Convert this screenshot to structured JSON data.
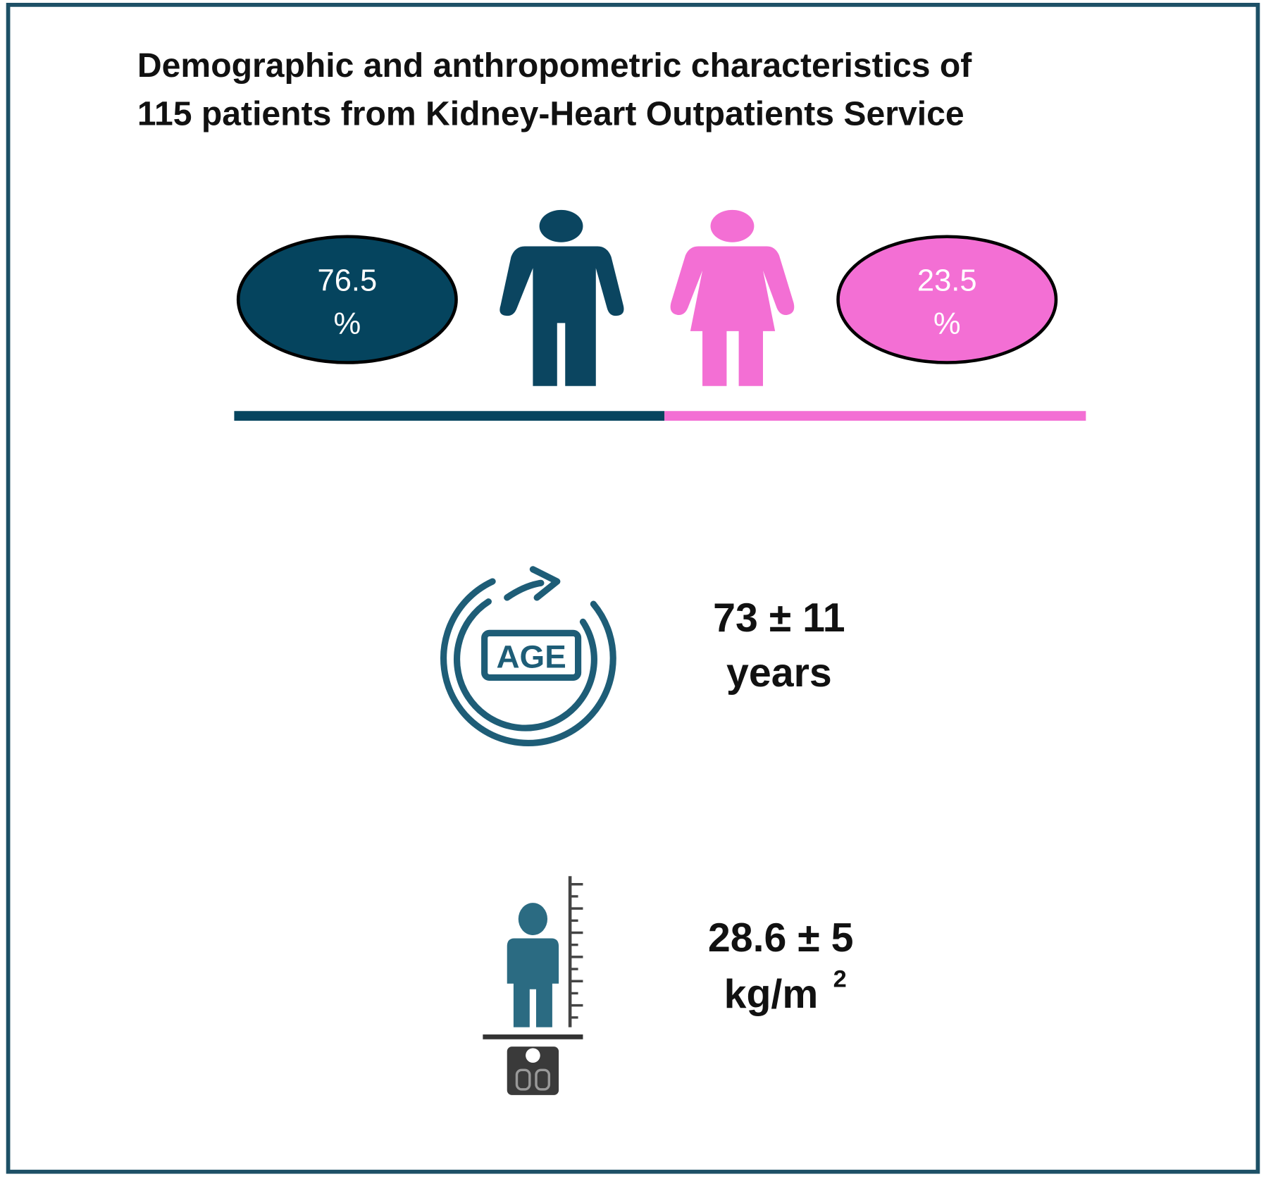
{
  "title": {
    "lines": [
      "Demographic and anthropometric characteristics of",
      "115 patients from Kidney-Heart Outpatients Service"
    ]
  },
  "gender": {
    "male": {
      "percent": 76.5,
      "unit": "%"
    },
    "female": {
      "percent": 23.5,
      "unit": "%"
    }
  },
  "age": {
    "icon_label": "AGE",
    "value": "73 ± 11",
    "unit": "years"
  },
  "bmi": {
    "value": "28.6 ± 5",
    "unit": "kg/m",
    "unit_superscript": "2"
  }
}
